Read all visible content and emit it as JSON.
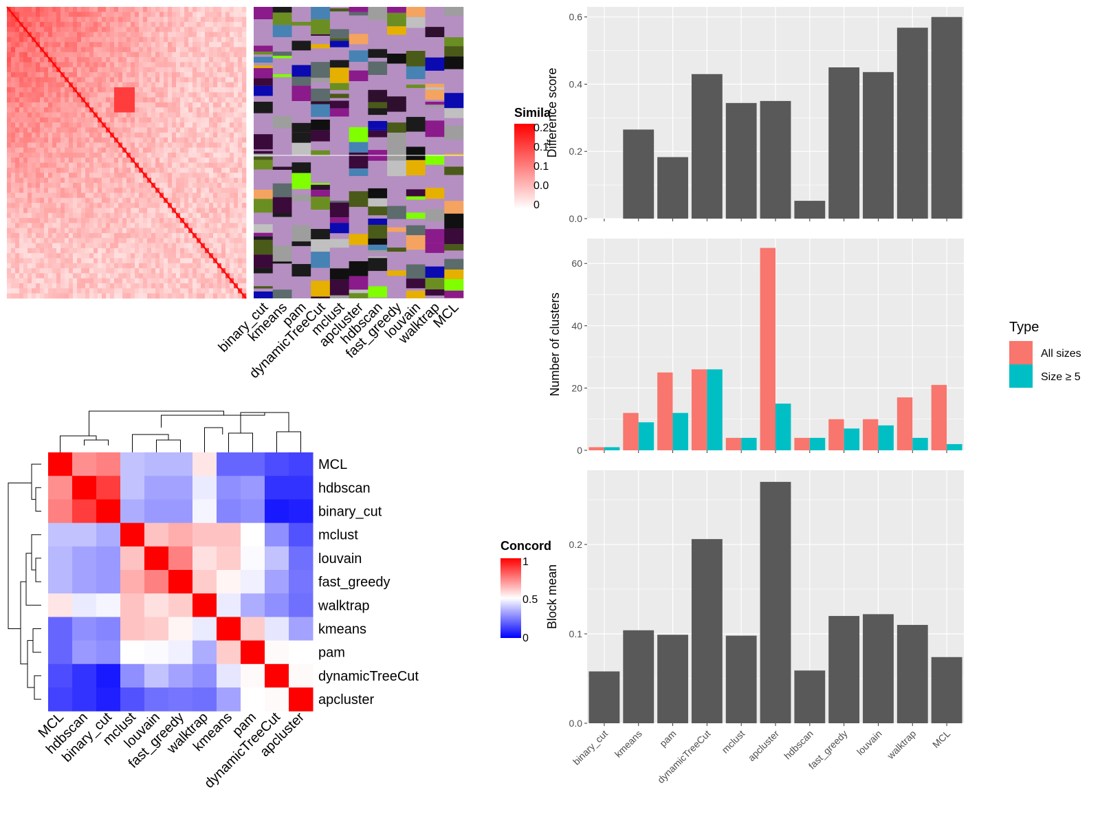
{
  "methods_order": [
    "binary_cut",
    "kmeans",
    "pam",
    "dynamicTreeCut",
    "mclust",
    "apcluster",
    "hdbscan",
    "fast_greedy",
    "louvain",
    "walktrap",
    "MCL"
  ],
  "similarity_legend": {
    "title": "Similarity",
    "visible_title": "Simila",
    "ticks": [
      "0.2",
      "0.1",
      "0.1",
      "0.0",
      "0"
    ]
  },
  "concordance": {
    "legend": {
      "title": "Concordance",
      "visible_title": "Concord",
      "ticks": [
        "1",
        "0.5",
        "0"
      ]
    },
    "order": [
      "MCL",
      "hdbscan",
      "binary_cut",
      "mclust",
      "louvain",
      "fast_greedy",
      "walktrap",
      "kmeans",
      "pam",
      "dynamicTreeCut",
      "apcluster"
    ],
    "matrix": [
      [
        1.0,
        0.72,
        0.75,
        0.38,
        0.36,
        0.36,
        0.55,
        0.2,
        0.2,
        0.15,
        0.13
      ],
      [
        0.72,
        1.0,
        0.88,
        0.38,
        0.32,
        0.32,
        0.46,
        0.28,
        0.3,
        0.1,
        0.1
      ],
      [
        0.75,
        0.88,
        1.0,
        0.34,
        0.3,
        0.3,
        0.48,
        0.26,
        0.28,
        0.05,
        0.06
      ],
      [
        0.38,
        0.38,
        0.34,
        1.0,
        0.62,
        0.66,
        0.62,
        0.62,
        0.5,
        0.28,
        0.16
      ],
      [
        0.36,
        0.32,
        0.3,
        0.62,
        1.0,
        0.75,
        0.56,
        0.6,
        0.49,
        0.38,
        0.22
      ],
      [
        0.36,
        0.32,
        0.3,
        0.66,
        0.75,
        1.0,
        0.6,
        0.52,
        0.47,
        0.32,
        0.23
      ],
      [
        0.55,
        0.46,
        0.48,
        0.62,
        0.56,
        0.6,
        1.0,
        0.46,
        0.34,
        0.28,
        0.22
      ],
      [
        0.2,
        0.28,
        0.26,
        0.62,
        0.6,
        0.52,
        0.46,
        1.0,
        0.6,
        0.45,
        0.32
      ],
      [
        0.2,
        0.3,
        0.28,
        0.5,
        0.49,
        0.47,
        0.34,
        0.6,
        1.0,
        0.51,
        0.5
      ],
      [
        0.15,
        0.1,
        0.05,
        0.28,
        0.38,
        0.32,
        0.28,
        0.45,
        0.51,
        1.0,
        0.51
      ],
      [
        0.13,
        0.1,
        0.06,
        0.16,
        0.22,
        0.23,
        0.22,
        0.32,
        0.5,
        0.51,
        1.0
      ]
    ]
  },
  "colors": {
    "panel_bg": "#ebebeb",
    "grid": "#ffffff",
    "bar": "#595959",
    "all_sizes": "#f8766d",
    "size_ge_5": "#00bfc4",
    "heat_high": "#ff0000",
    "heat_mid": "#ffffff",
    "heat_low": "#0000ff",
    "class_bg": "#b58fc1"
  },
  "chart_data": [
    {
      "type": "bar",
      "categories": [
        "binary_cut",
        "kmeans",
        "pam",
        "dynamicTreeCut",
        "mclust",
        "apcluster",
        "hdbscan",
        "fast_greedy",
        "louvain",
        "walktrap",
        "MCL"
      ],
      "values": [
        0.0,
        0.265,
        0.183,
        0.43,
        0.344,
        0.35,
        0.053,
        0.45,
        0.436,
        0.568,
        0.6
      ],
      "xlabel": "",
      "ylabel": "Difference score",
      "ylim": [
        0,
        0.63
      ],
      "yticks": [
        "0.0",
        "0.2",
        "0.4",
        "0.6"
      ],
      "grid": true
    },
    {
      "type": "bar",
      "categories": [
        "binary_cut",
        "kmeans",
        "pam",
        "dynamicTreeCut",
        "mclust",
        "apcluster",
        "hdbscan",
        "fast_greedy",
        "louvain",
        "walktrap",
        "MCL"
      ],
      "series": [
        {
          "name": "All sizes",
          "values": [
            1,
            12,
            25,
            26,
            4,
            65,
            4,
            10,
            10,
            17,
            21
          ]
        },
        {
          "name": "Size ≥ 5",
          "values": [
            1,
            9,
            12,
            26,
            4,
            15,
            4,
            7,
            8,
            4,
            2
          ]
        }
      ],
      "legend_title": "Type",
      "legend": "right",
      "ylabel": "Number of clusters",
      "ylim": [
        0,
        68
      ],
      "yticks": [
        "0",
        "20",
        "40",
        "60"
      ],
      "grid": true
    },
    {
      "type": "bar",
      "categories": [
        "binary_cut",
        "kmeans",
        "pam",
        "dynamicTreeCut",
        "mclust",
        "apcluster",
        "hdbscan",
        "fast_greedy",
        "louvain",
        "walktrap",
        "MCL"
      ],
      "values": [
        0.058,
        0.104,
        0.099,
        0.206,
        0.098,
        0.27,
        0.059,
        0.12,
        0.122,
        0.11,
        0.074
      ],
      "ylabel": "Block mean",
      "ylim": [
        0,
        0.283
      ],
      "yticks": [
        "0.0",
        "0.1",
        "0.2"
      ],
      "grid": true
    }
  ]
}
